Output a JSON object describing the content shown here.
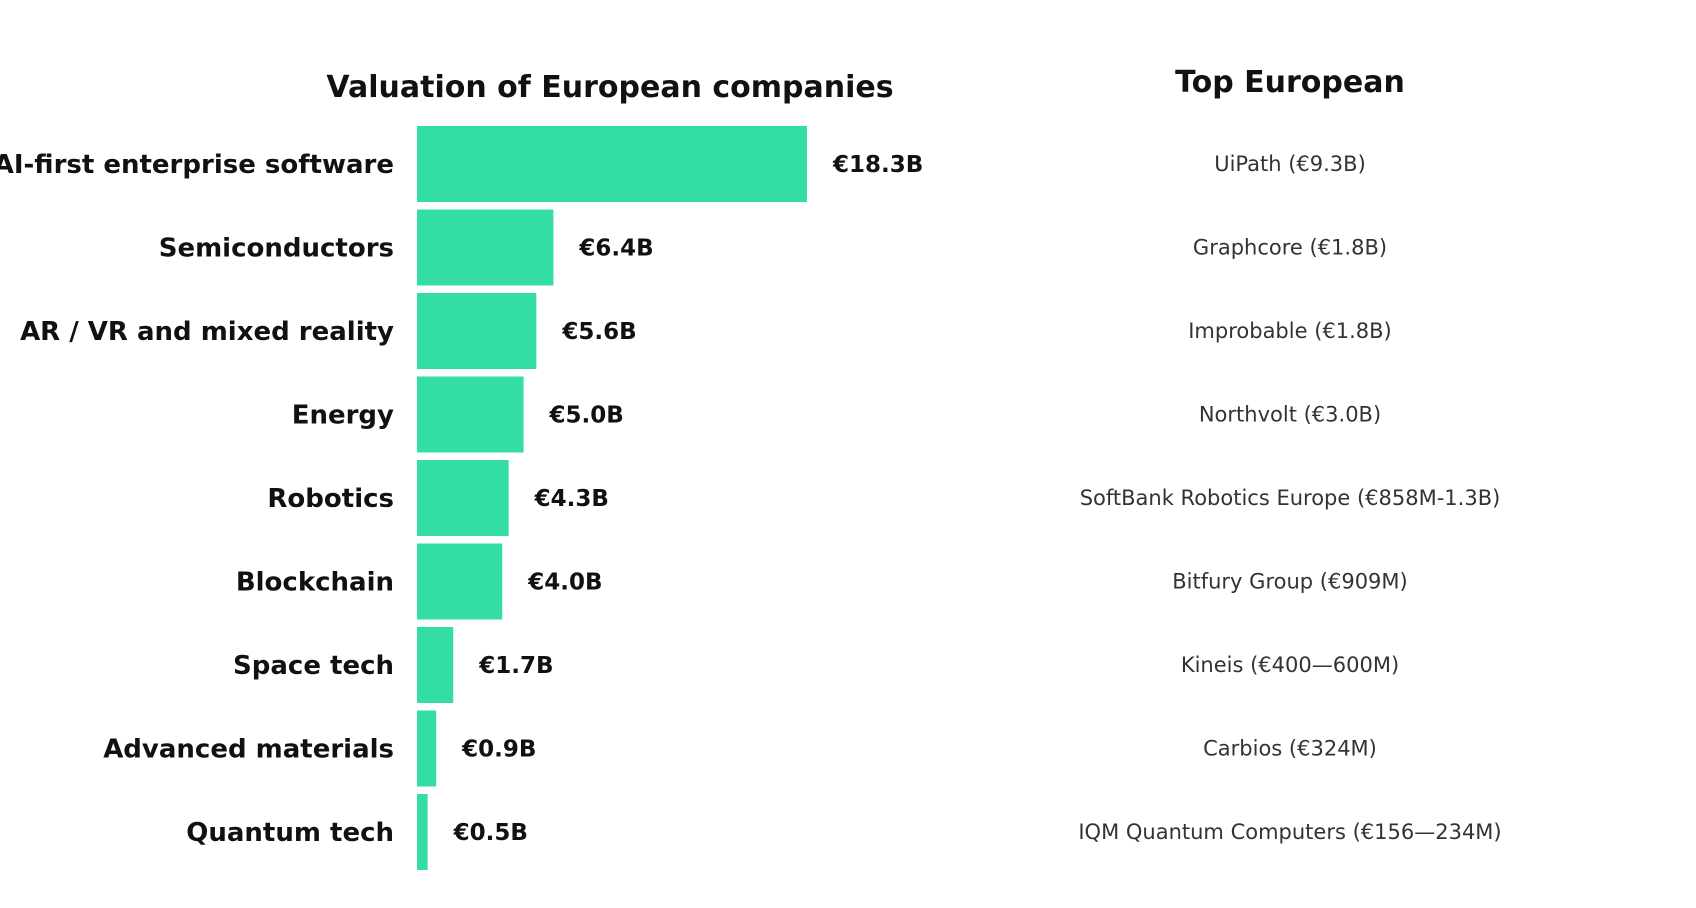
{
  "chart_data": {
    "type": "bar",
    "orientation": "horizontal",
    "title": "Valuation of European companies",
    "right_column_title": "Top European",
    "categories": [
      "AI-first enterprise software",
      "Semiconductors",
      "AR / VR and mixed reality",
      "Energy",
      "Robotics",
      "Blockchain",
      "Space tech",
      "Advanced materials",
      "Quantum tech"
    ],
    "values": [
      18.3,
      6.4,
      5.6,
      5.0,
      4.3,
      4.0,
      1.7,
      0.9,
      0.5
    ],
    "value_labels": [
      "€18.3B",
      "€6.4B",
      "€5.6B",
      "€5.0B",
      "€4.3B",
      "€4.0B",
      "€1.7B",
      "€0.9B",
      "€0.5B"
    ],
    "top_companies": [
      "UiPath (€9.3B)",
      "Graphcore (€1.8B)",
      "Improbable (€1.8B)",
      "Northvolt (€3.0B)",
      "SoftBank Robotics Europe (€858M-1.3B)",
      "Bitfury Group (€909M)",
      "Kineis (€400—600M)",
      "Carbios (€324M)",
      "IQM Quantum Computers (€156—234M)"
    ],
    "unit": "€B",
    "xlim": [
      0,
      18.3
    ],
    "grid": false,
    "legend": "none",
    "bar_color": "#34DDA6"
  }
}
